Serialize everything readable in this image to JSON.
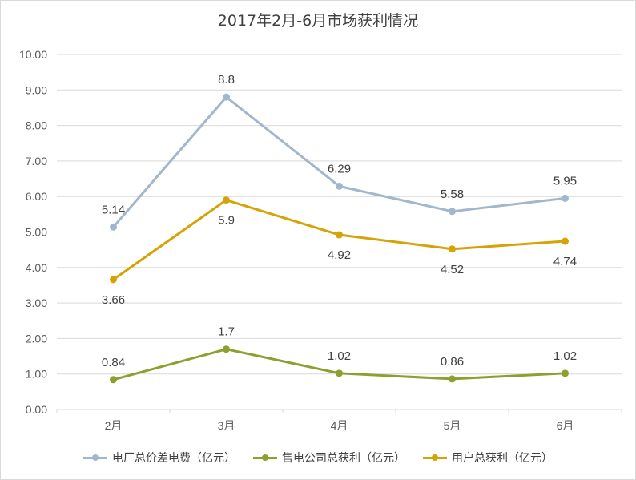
{
  "chart_data": {
    "type": "line",
    "title": "2017年2月-6月市场获利情况",
    "categories": [
      "2月",
      "3月",
      "4月",
      "5月",
      "6月"
    ],
    "ylim": [
      0,
      10
    ],
    "yticks": [
      "0.00",
      "1.00",
      "2.00",
      "3.00",
      "4.00",
      "5.00",
      "6.00",
      "7.00",
      "8.00",
      "9.00",
      "10.00"
    ],
    "grid": true,
    "legend_position": "bottom",
    "series": [
      {
        "name": "电厂总价差电费（亿元）",
        "color": "#a2b7cb",
        "values": [
          5.14,
          8.8,
          6.29,
          5.58,
          5.95
        ],
        "labels": [
          "5.14",
          "8.8",
          "6.29",
          "5.58",
          "5.95"
        ],
        "label_pos": [
          "above",
          "above",
          "above",
          "above",
          "above"
        ]
      },
      {
        "name": "售电公司总获利（亿元）",
        "color": "#8e9e2f",
        "values": [
          0.84,
          1.7,
          1.02,
          0.86,
          1.02
        ],
        "labels": [
          "0.84",
          "1.7",
          "1.02",
          "0.86",
          "1.02"
        ],
        "label_pos": [
          "above",
          "above",
          "above",
          "above",
          "above"
        ]
      },
      {
        "name": "用户总获利（亿元）",
        "color": "#d6a306",
        "values": [
          3.66,
          5.9,
          4.92,
          4.52,
          4.74
        ],
        "labels": [
          "3.66",
          "5.9",
          "4.92",
          "4.52",
          "4.74"
        ],
        "label_pos": [
          "below",
          "below",
          "below",
          "below",
          "below"
        ]
      }
    ]
  }
}
